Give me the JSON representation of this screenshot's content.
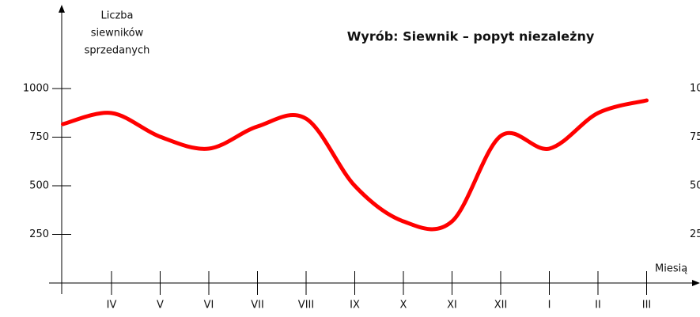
{
  "chart_data": {
    "type": "line",
    "title": "Wyrób: Siewnik – popyt niezależny",
    "y_label": [
      "Liczba",
      "siewników",
      "sprzedanych"
    ],
    "x_label": "Miesią",
    "categories": [
      null,
      "IV",
      "V",
      "VI",
      "VII",
      "VIII",
      "IX",
      "X",
      "XI",
      "XII",
      "I",
      "II",
      "III"
    ],
    "series": [
      {
        "name": "popyt",
        "color": "#ff0000",
        "values": [
          817,
          874,
          752,
          691,
          805,
          845,
          500,
          317,
          317,
          756,
          691,
          874,
          939
        ]
      }
    ],
    "ylim": [
      0,
      1000
    ],
    "yticks": [
      250,
      500,
      750,
      1000
    ]
  }
}
